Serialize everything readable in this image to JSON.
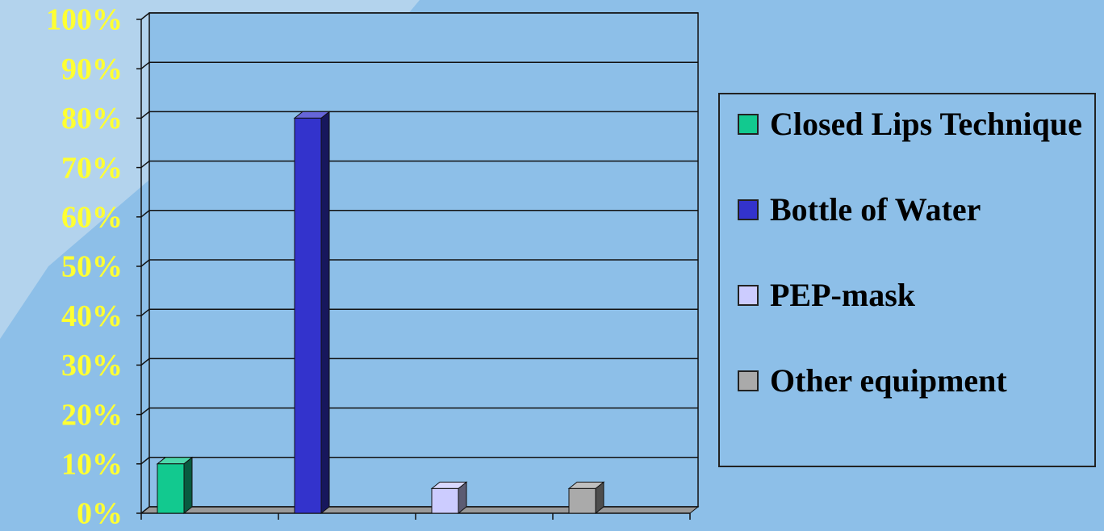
{
  "chart_data": {
    "type": "bar3d",
    "series": [
      {
        "name": "Closed Lips Technique",
        "color": "#12c98f",
        "values": [
          10
        ]
      },
      {
        "name": "Bottle of Water",
        "color": "#3333cc",
        "values": [
          80
        ]
      },
      {
        "name": "PEP-mask",
        "color": "#ccccff",
        "values": [
          5
        ]
      },
      {
        "name": "Other equipment",
        "color": "#aaaaaa",
        "values": [
          5
        ]
      }
    ],
    "ylim": [
      0,
      100
    ],
    "yticks": [
      {
        "value": 0,
        "label": "0%"
      },
      {
        "value": 10,
        "label": "10%"
      },
      {
        "value": 20,
        "label": "20%"
      },
      {
        "value": 30,
        "label": "30%"
      },
      {
        "value": 40,
        "label": "40%"
      },
      {
        "value": 50,
        "label": "50%"
      },
      {
        "value": 60,
        "label": "60%"
      },
      {
        "value": 70,
        "label": "70%"
      },
      {
        "value": 80,
        "label": "80%"
      },
      {
        "value": 90,
        "label": "90%"
      },
      {
        "value": 100,
        "label": "100%"
      }
    ],
    "grid": true,
    "legend": "right"
  }
}
